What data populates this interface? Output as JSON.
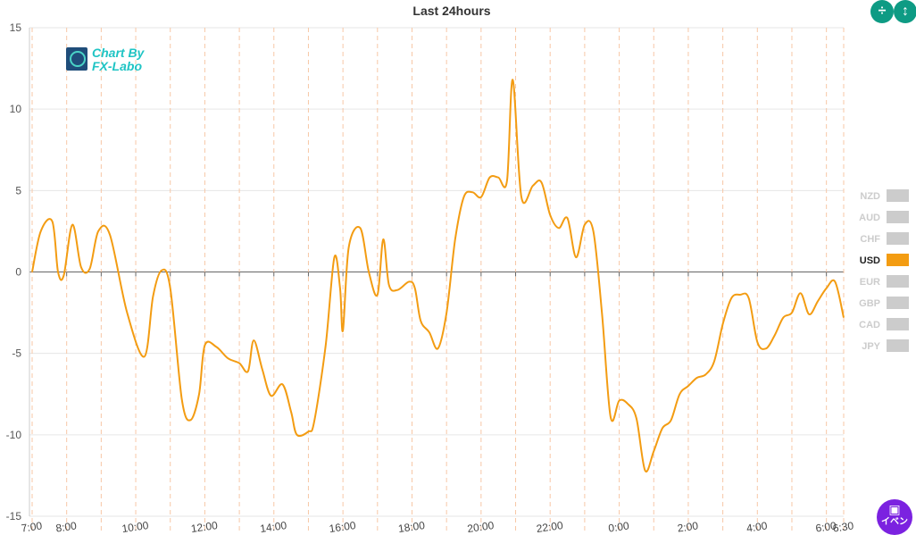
{
  "chart_data": {
    "type": "line",
    "title": "Last 24hours",
    "ylim": [
      -15,
      15
    ],
    "yticks": [
      "15",
      "10",
      "5",
      "0",
      "-5",
      "-10",
      "-15"
    ],
    "xticks": [
      "7:00",
      "8:00",
      "10:00",
      "12:00",
      "14:00",
      "16:00",
      "18:00",
      "20:00",
      "22:00",
      "0:00",
      "2:00",
      "4:00",
      "6:00",
      "6:30"
    ],
    "grid": true,
    "legend_placement": "right",
    "series": [
      {
        "name": "USD",
        "color": "#f39c12",
        "points": [
          [
            "7:00",
            0.0
          ],
          [
            "7:15",
            2.5
          ],
          [
            "7:35",
            3.1
          ],
          [
            "7:45",
            0.0
          ],
          [
            "7:55",
            -0.2
          ],
          [
            "8:10",
            2.9
          ],
          [
            "8:25",
            0.3
          ],
          [
            "8:40",
            0.2
          ],
          [
            "8:55",
            2.5
          ],
          [
            "9:15",
            2.3
          ],
          [
            "9:45",
            -2.5
          ],
          [
            "10:15",
            -5.2
          ],
          [
            "10:30",
            -1.5
          ],
          [
            "10:45",
            0.1
          ],
          [
            "11:00",
            -1.0
          ],
          [
            "11:20",
            -7.8
          ],
          [
            "11:35",
            -9.1
          ],
          [
            "11:50",
            -7.5
          ],
          [
            "12:00",
            -4.5
          ],
          [
            "12:20",
            -4.6
          ],
          [
            "12:40",
            -5.3
          ],
          [
            "13:00",
            -5.6
          ],
          [
            "13:15",
            -6.1
          ],
          [
            "13:25",
            -4.2
          ],
          [
            "13:40",
            -6.0
          ],
          [
            "13:55",
            -7.6
          ],
          [
            "14:15",
            -6.9
          ],
          [
            "14:30",
            -8.6
          ],
          [
            "14:40",
            -10.0
          ],
          [
            "15:00",
            -9.8
          ],
          [
            "15:10",
            -9.2
          ],
          [
            "15:30",
            -4.5
          ],
          [
            "15:45",
            0.9
          ],
          [
            "15:55",
            -1.0
          ],
          [
            "16:00",
            -3.6
          ],
          [
            "16:10",
            1.5
          ],
          [
            "16:30",
            2.7
          ],
          [
            "16:45",
            0.0
          ],
          [
            "17:00",
            -1.4
          ],
          [
            "17:10",
            2.0
          ],
          [
            "17:20",
            -0.8
          ],
          [
            "17:35",
            -1.1
          ],
          [
            "17:55",
            -0.6
          ],
          [
            "18:05",
            -1.0
          ],
          [
            "18:15",
            -3.0
          ],
          [
            "18:30",
            -3.7
          ],
          [
            "18:45",
            -4.7
          ],
          [
            "19:00",
            -2.5
          ],
          [
            "19:15",
            2.0
          ],
          [
            "19:30",
            4.6
          ],
          [
            "19:45",
            4.9
          ],
          [
            "20:00",
            4.6
          ],
          [
            "20:15",
            5.8
          ],
          [
            "20:30",
            5.8
          ],
          [
            "20:45",
            5.6
          ],
          [
            "20:55",
            11.8
          ],
          [
            "21:10",
            4.6
          ],
          [
            "21:30",
            5.3
          ],
          [
            "21:45",
            5.5
          ],
          [
            "22:00",
            3.5
          ],
          [
            "22:15",
            2.7
          ],
          [
            "22:30",
            3.3
          ],
          [
            "22:45",
            0.9
          ],
          [
            "23:00",
            2.9
          ],
          [
            "23:15",
            2.5
          ],
          [
            "23:30",
            -2.5
          ],
          [
            "23:45",
            -8.9
          ],
          [
            "0:00",
            -7.9
          ],
          [
            "0:15",
            -8.1
          ],
          [
            "0:30",
            -9.0
          ],
          [
            "0:45",
            -12.2
          ],
          [
            "1:00",
            -11.0
          ],
          [
            "1:15",
            -9.6
          ],
          [
            "1:30",
            -9.1
          ],
          [
            "1:45",
            -7.5
          ],
          [
            "2:00",
            -7.0
          ],
          [
            "2:15",
            -6.5
          ],
          [
            "2:30",
            -6.3
          ],
          [
            "2:45",
            -5.5
          ],
          [
            "3:00",
            -3.2
          ],
          [
            "3:15",
            -1.6
          ],
          [
            "3:30",
            -1.4
          ],
          [
            "3:45",
            -1.6
          ],
          [
            "4:00",
            -4.3
          ],
          [
            "4:15",
            -4.7
          ],
          [
            "4:30",
            -3.9
          ],
          [
            "4:45",
            -2.8
          ],
          [
            "5:00",
            -2.5
          ],
          [
            "5:15",
            -1.3
          ],
          [
            "5:30",
            -2.6
          ],
          [
            "5:45",
            -1.8
          ],
          [
            "6:00",
            -1.0
          ],
          [
            "6:15",
            -0.6
          ],
          [
            "6:30",
            -2.8
          ]
        ]
      }
    ]
  },
  "legend": [
    {
      "label": "NZD",
      "active": false
    },
    {
      "label": "AUD",
      "active": false
    },
    {
      "label": "CHF",
      "active": false
    },
    {
      "label": "USD",
      "active": true,
      "color": "#f39c12"
    },
    {
      "label": "EUR",
      "active": false
    },
    {
      "label": "GBP",
      "active": false
    },
    {
      "label": "CAD",
      "active": false
    },
    {
      "label": "JPY",
      "active": false
    }
  ],
  "controls": {
    "collapse_icon": "collapse-vertical-icon",
    "expand_icon": "expand-vertical-icon",
    "event_icon": "calendar-icon",
    "event_label": "イベン"
  },
  "watermark": {
    "line1": "Chart By",
    "line2": "FX-Labo",
    "icon": "chart-magnifier-logo"
  }
}
